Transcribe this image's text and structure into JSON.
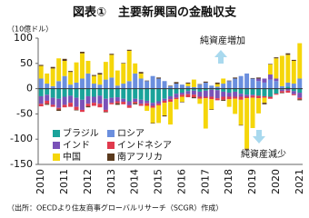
{
  "chart_data": {
    "type": "bar",
    "stacked": true,
    "title": "図表①　主要新興国の金融収支",
    "y_label": "（10億ドル）",
    "annotations": [
      "純資産増加",
      "純資産減少"
    ],
    "source": "（出所：OECDより住友商事グローバルリサーチ（SCGR）作成）",
    "categories": [
      "2010",
      null,
      null,
      null,
      "2011",
      null,
      null,
      null,
      "2012",
      null,
      null,
      null,
      "2013",
      null,
      null,
      null,
      "2014",
      null,
      null,
      null,
      "2015",
      null,
      null,
      null,
      "2016",
      null,
      null,
      null,
      "2017",
      null,
      null,
      null,
      "2018",
      null,
      null,
      null,
      "2019",
      null,
      null,
      null,
      "2020",
      null,
      null,
      null,
      "2021"
    ],
    "ylim": [
      -150,
      100
    ],
    "yticks": [
      100,
      50,
      0,
      -50,
      -100,
      -150
    ],
    "series": [
      {
        "name": "ブラジル",
        "color": "#1aa39a",
        "values": [
          -15,
          -12,
          -18,
          -20,
          -16,
          -14,
          -18,
          -22,
          -15,
          -16,
          -14,
          -20,
          -18,
          -17,
          -20,
          -25,
          -20,
          -22,
          -24,
          -28,
          -25,
          -20,
          -15,
          -10,
          -8,
          -5,
          -4,
          -6,
          -4,
          -2,
          -3,
          -6,
          -8,
          -6,
          -10,
          -12,
          -12,
          -14,
          -15,
          -16,
          -10,
          -2,
          4,
          -5,
          -8
        ]
      },
      {
        "name": "ロシア",
        "color": "#6b8fde",
        "values": [
          20,
          10,
          5,
          15,
          25,
          8,
          12,
          20,
          30,
          10,
          8,
          18,
          22,
          6,
          10,
          15,
          30,
          20,
          15,
          25,
          20,
          15,
          5,
          10,
          8,
          5,
          3,
          8,
          12,
          6,
          4,
          10,
          15,
          20,
          25,
          30,
          20,
          15,
          12,
          18,
          15,
          5,
          8,
          10,
          20
        ]
      },
      {
        "name": "インド",
        "color": "#7a52b8",
        "values": [
          -15,
          -12,
          -14,
          -18,
          -16,
          -14,
          -18,
          -20,
          -15,
          -12,
          -16,
          -22,
          -10,
          -8,
          -6,
          -8,
          -6,
          -8,
          -5,
          -6,
          -5,
          -4,
          -6,
          -8,
          -4,
          -6,
          -8,
          -10,
          -12,
          -14,
          -16,
          -10,
          -8,
          -10,
          -6,
          -4,
          -2,
          5,
          8,
          10,
          5,
          -3,
          -4,
          -6,
          -10
        ]
      },
      {
        "name": "インドネシア",
        "color": "#e03a4d",
        "values": [
          -5,
          -6,
          -4,
          -3,
          -5,
          -8,
          -6,
          -4,
          -5,
          -6,
          -7,
          -4,
          -3,
          -4,
          -5,
          -5,
          -3,
          -4,
          -5,
          -4,
          -3,
          -4,
          -5,
          -3,
          -4,
          -6,
          -5,
          -4,
          -3,
          -5,
          -4,
          -6,
          -5,
          -4,
          -6,
          -3,
          -4,
          -5,
          -3,
          -4,
          -2,
          -3,
          -4,
          -2,
          -3
        ]
      },
      {
        "name": "中国",
        "color": "#f5d60a",
        "values": [
          25,
          20,
          35,
          45,
          30,
          25,
          40,
          50,
          25,
          15,
          20,
          35,
          45,
          30,
          40,
          60,
          20,
          10,
          -10,
          -30,
          -35,
          -25,
          -45,
          -20,
          -10,
          5,
          15,
          -10,
          -60,
          -20,
          5,
          10,
          -15,
          -30,
          -50,
          -100,
          -60,
          -30,
          -10,
          20,
          40,
          60,
          55,
          45,
          70
        ]
      },
      {
        "name": "南アフリカ",
        "color": "#5a3a1e",
        "values": [
          2,
          -2,
          3,
          -3,
          4,
          2,
          -1,
          3,
          -2,
          2,
          3,
          -1,
          2,
          -3,
          1,
          2,
          -2,
          3,
          1,
          -1,
          2,
          -2,
          1,
          3,
          -1,
          2,
          -2,
          1,
          2,
          -1,
          3,
          -2,
          1,
          2,
          -1,
          -2,
          1,
          2,
          -3,
          1,
          2,
          -1,
          3,
          2,
          -2
        ]
      }
    ]
  }
}
